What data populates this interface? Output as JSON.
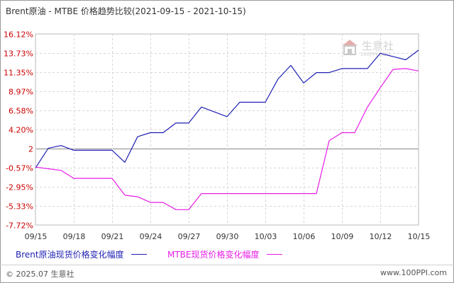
{
  "title": "Brent原油 - MTBE 价格趋势比较(2021-09-15 - 2021-10-15)",
  "watermark": {
    "name": "生意社",
    "domain": "100PPI.COM"
  },
  "footer": {
    "copyright": "© 2025.07 生意社",
    "site": "www.100PPI.com"
  },
  "chart_data": {
    "type": "line",
    "title": "Brent原油 - MTBE 价格趋势比较(2021-09-15 - 2021-10-15)",
    "xlabel": "",
    "ylabel": "",
    "x_ticks": [
      "09/15",
      "09/18",
      "09/21",
      "09/24",
      "09/27",
      "09/30",
      "10/03",
      "10/06",
      "10/09",
      "10/12",
      "10/15"
    ],
    "y_ticks": [
      {
        "label": "16.12%",
        "value": 16.12
      },
      {
        "label": "13.73%",
        "value": 13.73
      },
      {
        "label": "11.35%",
        "value": 11.35
      },
      {
        "label": "8.97%",
        "value": 8.97
      },
      {
        "label": "6.58%",
        "value": 6.58
      },
      {
        "label": "4.20%",
        "value": 4.2
      },
      {
        "label": "2",
        "value": 1.82
      },
      {
        "label": "-0.57%",
        "value": -0.57
      },
      {
        "label": "-2.95%",
        "value": -2.95
      },
      {
        "label": "-5.33%",
        "value": -5.33
      },
      {
        "label": "-7.72%",
        "value": -7.72
      }
    ],
    "y_range": [
      -7.72,
      16.12
    ],
    "baseline": 1.82,
    "grid": true,
    "legend_position": "bottom-left",
    "series": [
      {
        "name": "Brent原油现货价格变化幅度",
        "color": "#1f1fb4",
        "points": [
          [
            0,
            -0.6
          ],
          [
            1,
            1.85
          ],
          [
            2,
            2.2
          ],
          [
            3,
            1.6
          ],
          [
            4,
            1.6
          ],
          [
            5,
            1.6
          ],
          [
            6,
            1.6
          ],
          [
            7,
            0.1
          ],
          [
            8,
            3.3
          ],
          [
            9,
            3.8
          ],
          [
            10,
            3.8
          ],
          [
            11,
            5.0
          ],
          [
            12,
            5.0
          ],
          [
            13,
            7.0
          ],
          [
            14,
            6.4
          ],
          [
            15,
            5.8
          ],
          [
            16,
            7.6
          ],
          [
            17,
            7.6
          ],
          [
            18,
            7.6
          ],
          [
            19,
            10.5
          ],
          [
            20,
            12.2
          ],
          [
            21,
            10.0
          ],
          [
            22,
            11.3
          ],
          [
            23,
            11.3
          ],
          [
            24,
            11.8
          ],
          [
            25,
            11.8
          ],
          [
            26,
            11.8
          ],
          [
            27,
            13.7
          ],
          [
            28,
            13.3
          ],
          [
            29,
            12.9
          ],
          [
            30,
            14.1
          ]
        ]
      },
      {
        "name": "MTBE现货价格变化幅度",
        "color": "#e61ee6",
        "points": [
          [
            0,
            -0.5
          ],
          [
            1,
            -0.7
          ],
          [
            2,
            -0.9
          ],
          [
            3,
            -1.9
          ],
          [
            4,
            -1.9
          ],
          [
            5,
            -1.9
          ],
          [
            6,
            -1.9
          ],
          [
            7,
            -4.0
          ],
          [
            8,
            -4.2
          ],
          [
            9,
            -4.9
          ],
          [
            10,
            -4.9
          ],
          [
            11,
            -5.8
          ],
          [
            12,
            -5.8
          ],
          [
            13,
            -3.8
          ],
          [
            14,
            -3.8
          ],
          [
            15,
            -3.8
          ],
          [
            16,
            -3.8
          ],
          [
            17,
            -3.8
          ],
          [
            18,
            -3.8
          ],
          [
            19,
            -3.8
          ],
          [
            20,
            -3.8
          ],
          [
            21,
            -3.8
          ],
          [
            22,
            -3.8
          ],
          [
            23,
            2.8
          ],
          [
            24,
            3.8
          ],
          [
            25,
            3.8
          ],
          [
            26,
            7.0
          ],
          [
            27,
            9.4
          ],
          [
            28,
            11.7
          ],
          [
            29,
            11.8
          ],
          [
            30,
            11.5
          ]
        ]
      }
    ]
  }
}
